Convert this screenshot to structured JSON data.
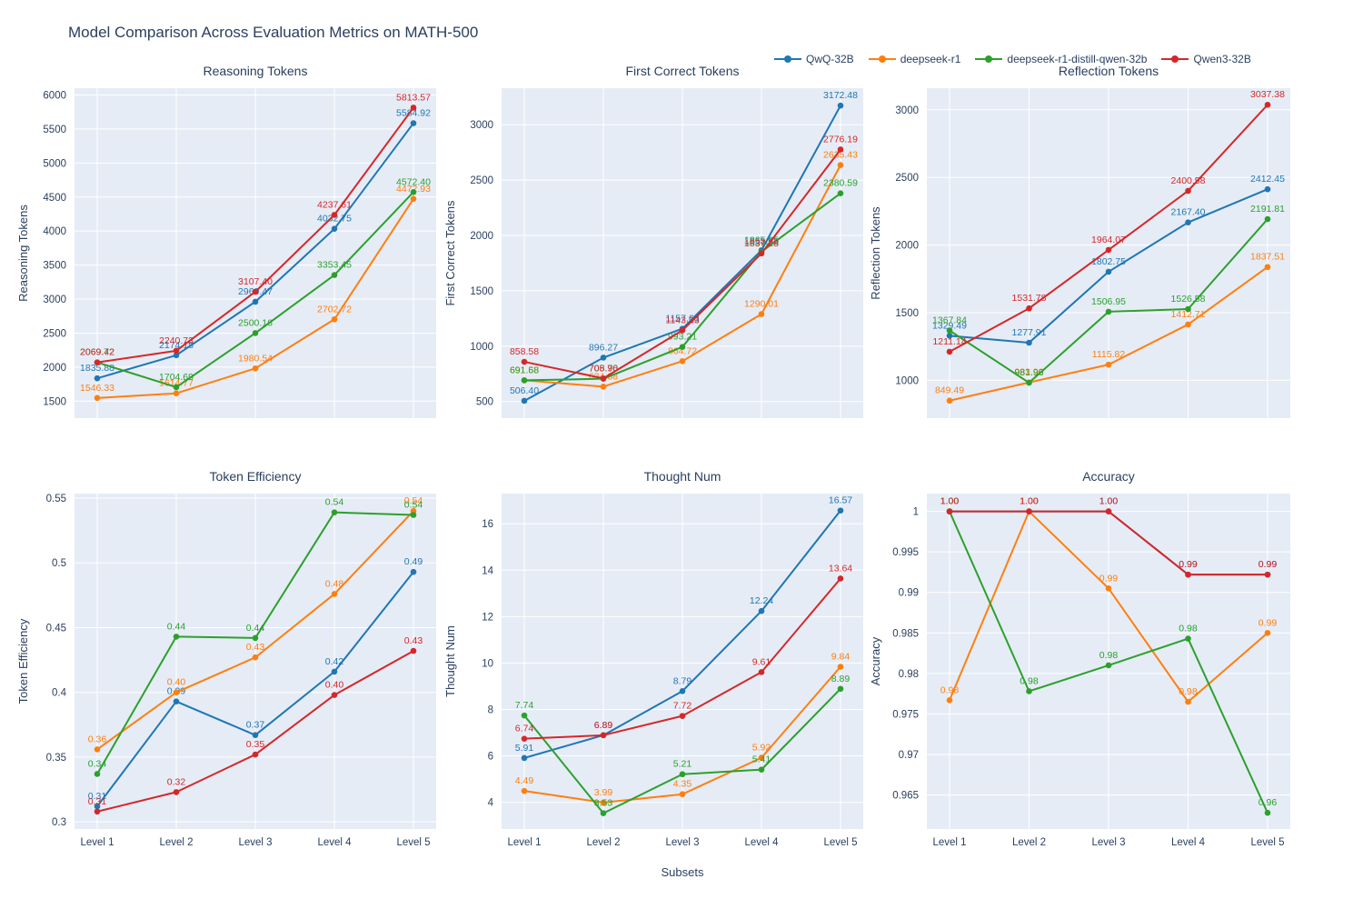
{
  "title": "Model Comparison Across Evaluation Metrics on MATH-500",
  "xlabel": "Subsets",
  "categories": [
    "Level 1",
    "Level 2",
    "Level 3",
    "Level 4",
    "Level 5"
  ],
  "legend": [
    {
      "label": "QwQ-32B",
      "color": "#1f77b4"
    },
    {
      "label": "deepseek-r1",
      "color": "#ff7f0e"
    },
    {
      "label": "deepseek-r1-distill-qwen-32b",
      "color": "#2ca02c"
    },
    {
      "label": "Qwen3-32B",
      "color": "#d62728"
    }
  ],
  "colors": {
    "plot_bg": "#E5ECF6",
    "grid": "#ffffff",
    "text": "#2a3f5f"
  },
  "chart_data": [
    {
      "type": "line",
      "title": "Reasoning Tokens",
      "ylabel": "Reasoning Tokens",
      "ylim": [
        1250,
        6100
      ],
      "ytick_values": [
        1500,
        2000,
        2500,
        3000,
        3500,
        4000,
        4500,
        5000,
        5500,
        6000
      ],
      "ytick_labels": [
        "1500",
        "2000",
        "2500",
        "3000",
        "3500",
        "4000",
        "4500",
        "5000",
        "5500",
        "6000"
      ],
      "series": [
        {
          "name": "QwQ-32B",
          "color": "#1f77b4",
          "values": [
            1835.88,
            2174.18,
            2960.47,
            4032.75,
            5584.92
          ],
          "labels": [
            "1835.88",
            "2174.18",
            "2960.47",
            "4032.75",
            "5584.92"
          ]
        },
        {
          "name": "deepseek-r1",
          "color": "#ff7f0e",
          "values": [
            1546.33,
            1614.77,
            1980.54,
            2702.72,
            4472.93
          ],
          "labels": [
            "1546.33",
            "1614.77",
            "1980.54",
            "2702.72",
            "4472.93"
          ]
        },
        {
          "name": "deepseek-r1-distill-qwen-32b",
          "color": "#2ca02c",
          "values": [
            2069.72,
            1704.69,
            2500.16,
            3353.45,
            4572.4
          ],
          "labels": [
            "2069.72",
            "1704.69",
            "2500.16",
            "3353.45",
            "4572.40"
          ]
        },
        {
          "name": "Qwen3-32B",
          "color": "#d62728",
          "values": [
            2069.42,
            2240.73,
            3107.4,
            4237.61,
            5813.57
          ],
          "labels": [
            "2069.42",
            "2240.73",
            "3107.40",
            "4237.61",
            "5813.57"
          ]
        }
      ]
    },
    {
      "type": "line",
      "title": "First Correct Tokens",
      "ylabel": "First Correct Tokens",
      "ylim": [
        350,
        3330
      ],
      "ytick_values": [
        500,
        1000,
        1500,
        2000,
        2500,
        3000
      ],
      "ytick_labels": [
        "500",
        "1000",
        "1500",
        "2000",
        "2500",
        "3000"
      ],
      "series": [
        {
          "name": "QwQ-32B",
          "color": "#1f77b4",
          "values": [
            506.4,
            896.27,
            1157.63,
            1865.65,
            3172.48
          ],
          "labels": [
            "506.40",
            "896.27",
            "1157.63",
            "1865.65",
            "3172.48"
          ]
        },
        {
          "name": "deepseek-r1",
          "color": "#ff7f0e",
          "values": [
            691.58,
            634.38,
            864.72,
            1290.01,
            2635.43
          ],
          "labels": [
            "691.58",
            "634.38",
            "864.72",
            "1290.01",
            "2635.43"
          ]
        },
        {
          "name": "deepseek-r1-distill-qwen-32b",
          "color": "#2ca02c",
          "values": [
            691.68,
            705.7,
            993.21,
            1853.23,
            2380.59
          ],
          "labels": [
            "691.68",
            "705.70",
            "993.21",
            "1853.23",
            "2380.59"
          ]
        },
        {
          "name": "Qwen3-32B",
          "color": "#d62728",
          "values": [
            858.58,
            708.96,
            1143.33,
            1837.28,
            2776.19
          ],
          "labels": [
            "858.58",
            "708.96",
            "1143.33",
            "1837.28",
            "2776.19"
          ]
        }
      ]
    },
    {
      "type": "line",
      "title": "Reflection Tokens",
      "ylabel": "Reflection Tokens",
      "ylim": [
        720,
        3160
      ],
      "ytick_values": [
        1000,
        1500,
        2000,
        2500,
        3000
      ],
      "ytick_labels": [
        "1000",
        "1500",
        "2000",
        "2500",
        "3000"
      ],
      "series": [
        {
          "name": "QwQ-32B",
          "color": "#1f77b4",
          "values": [
            1329.49,
            1277.91,
            1802.75,
            2167.4,
            2412.45
          ],
          "labels": [
            "1329.49",
            "1277.91",
            "1802.75",
            "2167.40",
            "2412.45"
          ]
        },
        {
          "name": "deepseek-r1",
          "color": "#ff7f0e",
          "values": [
            849.49,
            983.9,
            1115.82,
            1412.71,
            1837.51
          ],
          "labels": [
            "849.49",
            "983.90",
            "1115.82",
            "1412.71",
            "1837.51"
          ]
        },
        {
          "name": "deepseek-r1-distill-qwen-32b",
          "color": "#2ca02c",
          "values": [
            1367.84,
            981.96,
            1506.95,
            1526.58,
            2191.81
          ],
          "labels": [
            "1367.84",
            "981.96",
            "1506.95",
            "1526.58",
            "2191.81"
          ]
        },
        {
          "name": "Qwen3-32B",
          "color": "#d62728",
          "values": [
            1211.14,
            1531.78,
            1964.07,
            2400.58,
            3037.38
          ],
          "labels": [
            "1211.14",
            "1531.78",
            "1964.07",
            "2400.58",
            "3037.38"
          ]
        }
      ]
    },
    {
      "type": "line",
      "title": "Token Efficiency",
      "ylabel": "Token Efficiency",
      "ylim": [
        0.2945,
        0.5535
      ],
      "ytick_values": [
        0.3,
        0.35,
        0.4,
        0.45,
        0.5,
        0.55
      ],
      "ytick_labels": [
        "0.3",
        "0.35",
        "0.4",
        "0.45",
        "0.5",
        "0.55"
      ],
      "series": [
        {
          "name": "QwQ-32B",
          "color": "#1f77b4",
          "values": [
            0.312,
            0.393,
            0.367,
            0.416,
            0.493
          ],
          "labels": [
            "0.31",
            "0.39",
            "0.37",
            "0.42",
            "0.49"
          ]
        },
        {
          "name": "deepseek-r1",
          "color": "#ff7f0e",
          "values": [
            0.356,
            0.4,
            0.427,
            0.476,
            0.54
          ],
          "labels": [
            "0.36",
            "0.40",
            "0.43",
            "0.48",
            "0.54"
          ]
        },
        {
          "name": "deepseek-r1-distill-qwen-32b",
          "color": "#2ca02c",
          "values": [
            0.337,
            0.443,
            0.442,
            0.539,
            0.537
          ],
          "labels": [
            "0.34",
            "0.44",
            "0.44",
            "0.54",
            "0.54"
          ]
        },
        {
          "name": "Qwen3-32B",
          "color": "#d62728",
          "values": [
            0.308,
            0.323,
            0.352,
            0.398,
            0.432
          ],
          "labels": [
            "0.31",
            "0.32",
            "0.35",
            "0.40",
            "0.43"
          ]
        }
      ]
    },
    {
      "type": "line",
      "title": "Thought Num",
      "ylabel": "Thought Num",
      "ylim": [
        2.85,
        17.3
      ],
      "ytick_values": [
        4,
        6,
        8,
        10,
        12,
        14,
        16
      ],
      "ytick_labels": [
        "4",
        "6",
        "8",
        "10",
        "12",
        "14",
        "16"
      ],
      "series": [
        {
          "name": "QwQ-32B",
          "color": "#1f77b4",
          "values": [
            5.91,
            6.89,
            8.79,
            12.24,
            16.57
          ],
          "labels": [
            "5.91",
            "6.89",
            "8.79",
            "12.24",
            "16.57"
          ]
        },
        {
          "name": "deepseek-r1",
          "color": "#ff7f0e",
          "values": [
            4.49,
            3.99,
            4.35,
            5.92,
            9.84
          ],
          "labels": [
            "4.49",
            "3.99",
            "4.35",
            "5.92",
            "9.84"
          ]
        },
        {
          "name": "deepseek-r1-distill-qwen-32b",
          "color": "#2ca02c",
          "values": [
            7.74,
            3.53,
            5.21,
            5.41,
            8.89
          ],
          "labels": [
            "7.74",
            "3.53",
            "5.21",
            "5.41",
            "8.89"
          ]
        },
        {
          "name": "Qwen3-32B",
          "color": "#d62728",
          "values": [
            6.74,
            6.89,
            7.72,
            9.61,
            13.64
          ],
          "labels": [
            "6.74",
            "6.89",
            "7.72",
            "9.61",
            "13.64"
          ]
        }
      ]
    },
    {
      "type": "line",
      "title": "Accuracy",
      "ylabel": "Accuracy",
      "ylim": [
        0.9608,
        1.0022
      ],
      "ytick_values": [
        0.965,
        0.97,
        0.975,
        0.98,
        0.985,
        0.99,
        0.995,
        1
      ],
      "ytick_labels": [
        "0.965",
        "0.97",
        "0.975",
        "0.98",
        "0.985",
        "0.99",
        "0.995",
        "1"
      ],
      "series": [
        {
          "name": "QwQ-32B",
          "color": "#1f77b4",
          "values": [
            1.0,
            1.0,
            1.0,
            0.9922,
            0.9922
          ],
          "labels": [
            "1.00",
            "1.00",
            "1.00",
            "0.99",
            "0.99"
          ]
        },
        {
          "name": "deepseek-r1",
          "color": "#ff7f0e",
          "values": [
            0.9767,
            1.0,
            0.9905,
            0.9765,
            0.985
          ],
          "labels": [
            "0.98",
            "1.00",
            "0.99",
            "0.98",
            "0.99"
          ]
        },
        {
          "name": "deepseek-r1-distill-qwen-32b",
          "color": "#2ca02c",
          "values": [
            1.0,
            0.9778,
            0.981,
            0.9843,
            0.9628
          ],
          "labels": [
            "1.00",
            "0.98",
            "0.98",
            "0.98",
            "0.96"
          ]
        },
        {
          "name": "Qwen3-32B",
          "color": "#d62728",
          "values": [
            1.0,
            1.0,
            1.0,
            0.9922,
            0.9922
          ],
          "labels": [
            "1.00",
            "1.00",
            "1.00",
            "0.99",
            "0.99"
          ]
        }
      ]
    }
  ]
}
